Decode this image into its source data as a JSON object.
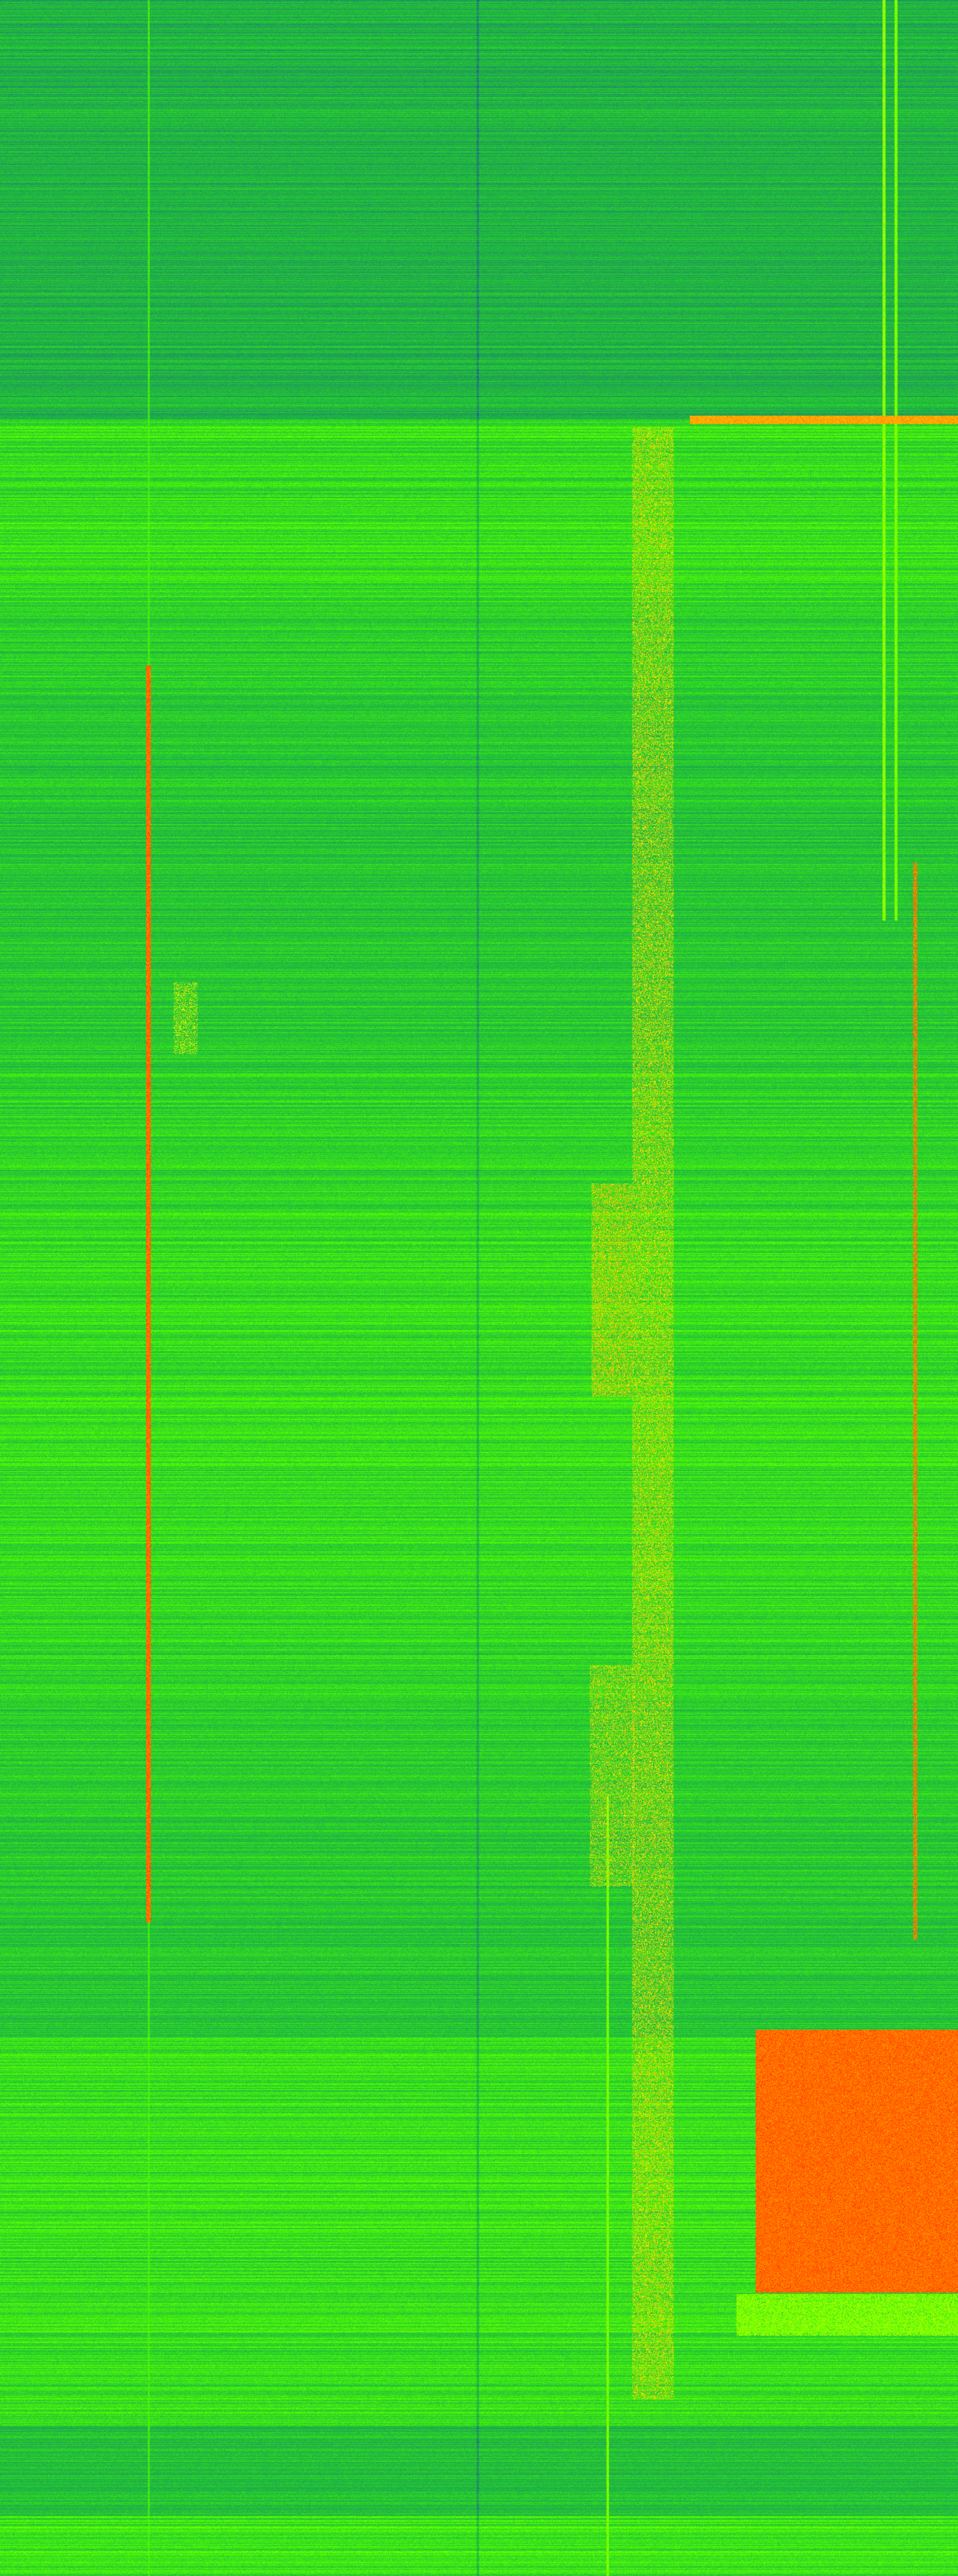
{
  "chart_data": {
    "type": "heatmap",
    "title": "",
    "xlabel": "",
    "ylabel": "",
    "axes_visible": false,
    "grid": false,
    "legend": "none",
    "colormap": [
      "#1f4fa8",
      "#1f9a5a",
      "#22c832",
      "#55ff00",
      "#e6ff00",
      "#ffb000",
      "#ff1a00"
    ]
  }
}
